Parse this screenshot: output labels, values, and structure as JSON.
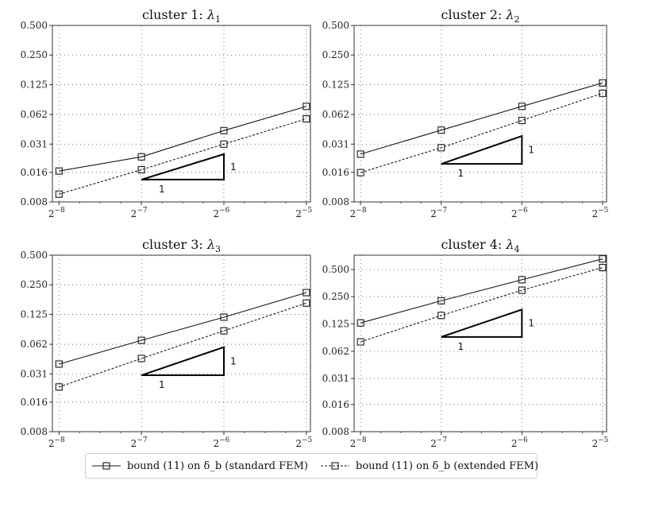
{
  "figure": {
    "legend": [
      {
        "label": "bound (11) on δ_b (standard FEM)",
        "line_style": "solid",
        "marker": "square"
      },
      {
        "label": "bound (11) on δ_b (extended FEM)",
        "line_style": "dashed",
        "marker": "square"
      }
    ],
    "colors": {
      "line": "#1a1a1a",
      "grid": "#555555",
      "axis": "#333333"
    }
  },
  "chart_data": [
    {
      "type": "line",
      "title_text": "cluster 1: ",
      "title_symbol": "λ",
      "title_sub": "1",
      "x": [
        -8,
        -7,
        -6,
        -5
      ],
      "xtick_base": "2",
      "xtick_exponents": [
        "−8",
        "−7",
        "−6",
        "−5"
      ],
      "yscale": "log2",
      "ylim": [
        0.008,
        0.5
      ],
      "yticks": [
        0.008,
        0.016,
        0.031,
        0.062,
        0.125,
        0.25,
        0.5
      ],
      "ytick_labels": [
        "0.008",
        "0.016",
        "0.031",
        "0.062",
        "0.125",
        "0.250",
        "0.500"
      ],
      "grid": true,
      "series": [
        {
          "name": "bound (11) on δ_b (standard FEM)",
          "style": "solid",
          "values": [
            0.0165,
            0.023,
            0.0425,
            0.075
          ]
        },
        {
          "name": "bound (11) on δ_b (extended FEM)",
          "style": "dashed",
          "values": [
            0.0096,
            0.017,
            0.031,
            0.056
          ]
        }
      ],
      "slope_triangle": {
        "x": [
          -7,
          -6
        ],
        "y": [
          0.0135,
          0.0245
        ],
        "slope_label": "1",
        "base_label": "1",
        "orientation": "lower-right"
      }
    },
    {
      "type": "line",
      "title_text": "cluster 2: ",
      "title_symbol": "λ",
      "title_sub": "2",
      "x": [
        -8,
        -7,
        -6,
        -5
      ],
      "xtick_base": "2",
      "xtick_exponents": [
        "−8",
        "−7",
        "−6",
        "−5"
      ],
      "yscale": "log2",
      "ylim": [
        0.008,
        0.5
      ],
      "yticks": [
        0.008,
        0.016,
        0.031,
        0.062,
        0.125,
        0.25,
        0.5
      ],
      "ytick_labels": [
        "0.008",
        "0.016",
        "0.031",
        "0.062",
        "0.125",
        "0.250",
        "0.500"
      ],
      "grid": true,
      "series": [
        {
          "name": "bound (11) on δ_b (standard FEM)",
          "style": "solid",
          "values": [
            0.0245,
            0.043,
            0.075,
            0.13
          ]
        },
        {
          "name": "bound (11) on δ_b (extended FEM)",
          "style": "dashed",
          "values": [
            0.0159,
            0.0285,
            0.054,
            0.102
          ]
        }
      ],
      "slope_triangle": {
        "x": [
          -7,
          -6
        ],
        "y": [
          0.0195,
          0.0375
        ],
        "slope_label": "1",
        "base_label": "1",
        "orientation": "lower-right"
      }
    },
    {
      "type": "line",
      "title_text": "cluster 3: ",
      "title_symbol": "λ",
      "title_sub": "3",
      "x": [
        -8,
        -7,
        -6,
        -5
      ],
      "xtick_base": "2",
      "xtick_exponents": [
        "−8",
        "−7",
        "−6",
        "−5"
      ],
      "yscale": "log2",
      "ylim": [
        0.008,
        0.5
      ],
      "yticks": [
        0.008,
        0.016,
        0.031,
        0.062,
        0.125,
        0.25,
        0.5
      ],
      "ytick_labels": [
        "0.008",
        "0.016",
        "0.031",
        "0.062",
        "0.125",
        "0.250",
        "0.500"
      ],
      "grid": true,
      "series": [
        {
          "name": "bound (11) on δ_b (standard FEM)",
          "style": "solid",
          "values": [
            0.039,
            0.068,
            0.117,
            0.208
          ]
        },
        {
          "name": "bound (11) on δ_b (extended FEM)",
          "style": "dashed",
          "values": [
            0.0228,
            0.0445,
            0.085,
            0.163
          ]
        }
      ],
      "slope_triangle": {
        "x": [
          -7,
          -6
        ],
        "y": [
          0.03,
          0.058
        ],
        "slope_label": "1",
        "base_label": "1",
        "orientation": "lower-right"
      }
    },
    {
      "type": "line",
      "title_text": "cluster 4: ",
      "title_symbol": "λ",
      "title_sub": "4",
      "x": [
        -8,
        -7,
        -6,
        -5
      ],
      "xtick_base": "2",
      "xtick_exponents": [
        "−8",
        "−7",
        "−6",
        "−5"
      ],
      "yscale": "log2",
      "ylim": [
        0.008,
        0.72
      ],
      "yticks": [
        0.008,
        0.016,
        0.031,
        0.062,
        0.125,
        0.25,
        0.5
      ],
      "ytick_labels": [
        "0.008",
        "0.016",
        "0.031",
        "0.062",
        "0.125",
        "0.250",
        "0.500"
      ],
      "grid": true,
      "series": [
        {
          "name": "bound (11) on δ_b (standard FEM)",
          "style": "solid",
          "values": [
            0.128,
            0.225,
            0.385,
            0.655
          ]
        },
        {
          "name": "bound (11) on δ_b (extended FEM)",
          "style": "dashed",
          "values": [
            0.079,
            0.155,
            0.295,
            0.525
          ]
        }
      ],
      "slope_triangle": {
        "x": [
          -7,
          -6
        ],
        "y": [
          0.0895,
          0.18
        ],
        "slope_label": "1",
        "base_label": "1",
        "orientation": "lower-right"
      }
    }
  ]
}
